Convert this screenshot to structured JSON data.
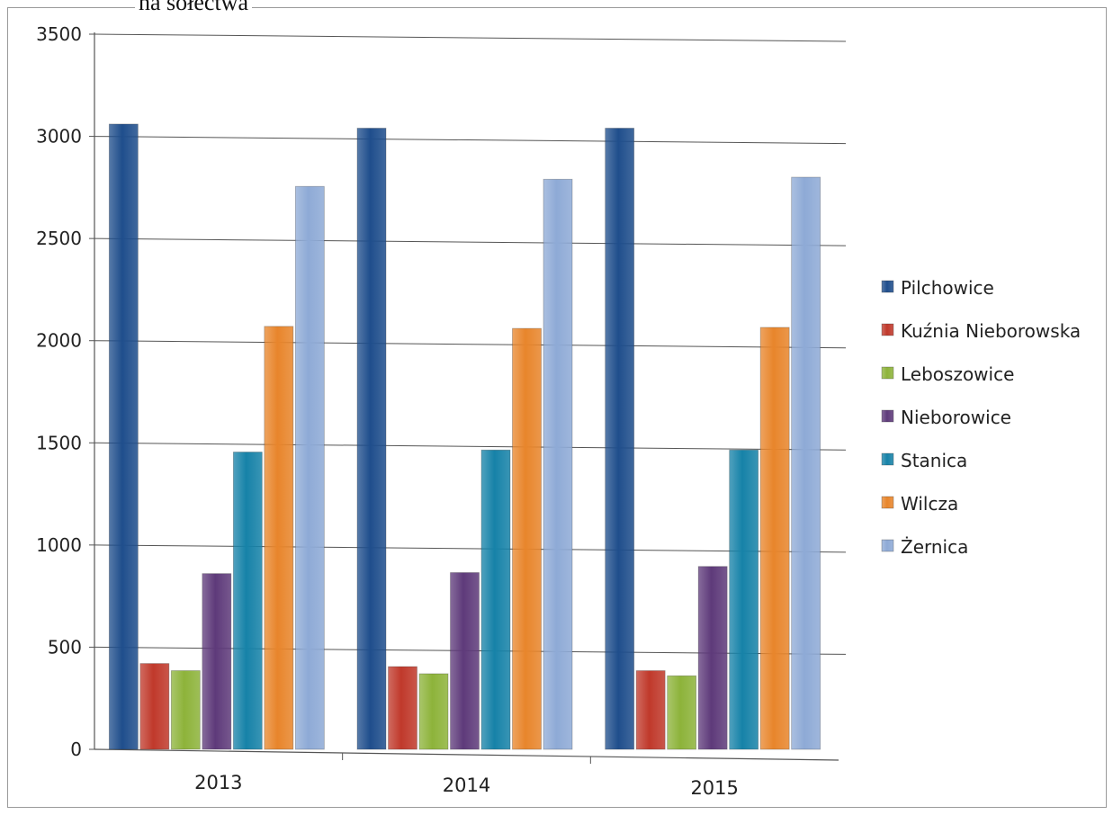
{
  "page": {
    "title": "na sołectwa"
  },
  "chart_data": {
    "type": "bar",
    "title": "",
    "xlabel": "",
    "ylabel": "",
    "categories": [
      "2013",
      "2014",
      "2015"
    ],
    "ylim": [
      0,
      3500
    ],
    "yticks": [
      0,
      500,
      1000,
      1500,
      2000,
      2500,
      3000,
      3500
    ],
    "grid": true,
    "legend_position": "right",
    "series": [
      {
        "name": "Pilchowice",
        "color": "#1f4e8c",
        "values": [
          3060,
          3040,
          3040
        ]
      },
      {
        "name": "Kuźnia Nieborowska",
        "color": "#c0392b",
        "values": [
          420,
          405,
          385
        ]
      },
      {
        "name": "Leboszowice",
        "color": "#8db33a",
        "values": [
          385,
          370,
          360
        ]
      },
      {
        "name": "Nieborowice",
        "color": "#5e3a7a",
        "values": [
          860,
          865,
          895
        ]
      },
      {
        "name": "Stanica",
        "color": "#1682a8",
        "values": [
          1455,
          1465,
          1465
        ]
      },
      {
        "name": "Wilcza",
        "color": "#e8852b",
        "values": [
          2070,
          2060,
          2065
        ]
      },
      {
        "name": "Żernica",
        "color": "#8eaad6",
        "values": [
          2755,
          2790,
          2800
        ]
      }
    ]
  }
}
